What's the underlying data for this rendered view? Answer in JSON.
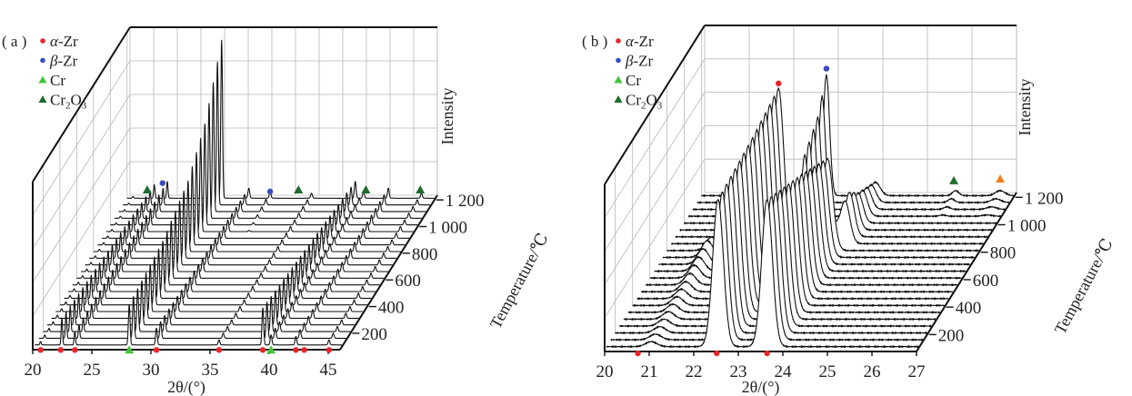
{
  "legend": [
    {
      "key": "alpha-Zr",
      "marker": "circle",
      "color": "#e8262b",
      "parts": [
        {
          "t": "α",
          "s": "italic"
        },
        {
          "t": "-Zr",
          "s": "normal"
        }
      ]
    },
    {
      "key": "beta-Zr",
      "marker": "circle",
      "color": "#3a4bbd",
      "parts": [
        {
          "t": "β",
          "s": "italic"
        },
        {
          "t": "-Zr",
          "s": "normal"
        }
      ]
    },
    {
      "key": "Cr",
      "marker": "triangle",
      "color": "#45c43c",
      "parts": [
        {
          "t": "Cr",
          "s": "normal"
        }
      ]
    },
    {
      "key": "Cr2O3",
      "marker": "triangle",
      "color": "#1f6b2e",
      "parts": [
        {
          "t": "Cr",
          "s": "normal"
        },
        {
          "t": "2",
          "s": "sub"
        },
        {
          "t": "O",
          "s": "normal"
        },
        {
          "t": "3",
          "s": "sub"
        }
      ]
    }
  ],
  "marker_colors": {
    "alpha-Zr": "#e8262b",
    "beta-Zr": "#3a4bbd",
    "Cr": "#45c43c",
    "Cr2O3": "#1f6b2e",
    "unlabeled": "#f08020"
  },
  "chart_data": [
    {
      "panel_label": "( a )",
      "type": "waterfall-line",
      "xlabel": "2θ/(°)",
      "ylabel": "Intensity",
      "zlabel": "Temperature/℃",
      "xlim": [
        20,
        46
      ],
      "x_ticks": [
        "20",
        "25",
        "30",
        "35",
        "40",
        "45"
      ],
      "z_ticks": [
        {
          "value": 200,
          "label": "200"
        },
        {
          "value": 400,
          "label": "400"
        },
        {
          "value": 600,
          "label": "600"
        },
        {
          "value": 800,
          "label": "800"
        },
        {
          "value": 1000,
          "label": "1 000"
        },
        {
          "value": 1200,
          "label": "1 200"
        }
      ],
      "temperatures": [
        100,
        150,
        200,
        250,
        300,
        350,
        400,
        450,
        500,
        550,
        600,
        650,
        700,
        750,
        800,
        850,
        900,
        950,
        1000,
        1050,
        1100,
        1150,
        1200
      ],
      "peaks": [
        {
          "theta": 20.5,
          "width": 0.08,
          "intensity": [
            [
              100,
              2
            ],
            [
              1200,
              1
            ]
          ]
        },
        {
          "theta": 22.3,
          "width": 0.08,
          "intensity": [
            [
              100,
              16
            ],
            [
              700,
              12
            ],
            [
              1200,
              8
            ]
          ]
        },
        {
          "theta": 23.4,
          "width": 0.08,
          "intensity": [
            [
              100,
              8
            ],
            [
              1200,
              10
            ]
          ]
        },
        {
          "theta": 28.0,
          "width": 0.1,
          "intensity": [
            [
              100,
              24
            ],
            [
              500,
              30
            ],
            [
              800,
              42
            ],
            [
              1000,
              60
            ],
            [
              1150,
              85
            ],
            [
              1200,
              94
            ]
          ]
        },
        {
          "theta": 30.3,
          "width": 0.1,
          "intensity": [
            [
              100,
              10
            ],
            [
              1200,
              6
            ]
          ]
        },
        {
          "theta": 32.1,
          "width": 0.1,
          "intensity": [
            [
              100,
              0
            ],
            [
              900,
              0
            ],
            [
              1200,
              4
            ]
          ]
        },
        {
          "theta": 35.6,
          "width": 0.1,
          "intensity": [
            [
              100,
              3
            ],
            [
              1200,
              3
            ]
          ]
        },
        {
          "theta": 39.3,
          "width": 0.1,
          "intensity": [
            [
              100,
              22
            ],
            [
              1200,
              10
            ]
          ]
        },
        {
          "theta": 40.0,
          "width": 0.1,
          "intensity": [
            [
              100,
              6
            ],
            [
              1200,
              4
            ]
          ]
        },
        {
          "theta": 42.1,
          "width": 0.1,
          "intensity": [
            [
              100,
              5
            ],
            [
              1200,
              6
            ]
          ]
        },
        {
          "theta": 44.9,
          "width": 0.1,
          "intensity": [
            [
              100,
              3
            ],
            [
              1200,
              3
            ]
          ]
        }
      ],
      "markers": [
        {
          "phase": "alpha-Zr",
          "theta": 20.5,
          "temperature": 100,
          "intensity": -2
        },
        {
          "phase": "alpha-Zr",
          "theta": 22.2,
          "temperature": 100,
          "intensity": -2
        },
        {
          "phase": "alpha-Zr",
          "theta": 23.4,
          "temperature": 100,
          "intensity": -2
        },
        {
          "phase": "Cr",
          "theta": 28.0,
          "temperature": 100,
          "intensity": -2
        },
        {
          "phase": "alpha-Zr",
          "theta": 30.3,
          "temperature": 100,
          "intensity": -2
        },
        {
          "phase": "alpha-Zr",
          "theta": 35.6,
          "temperature": 100,
          "intensity": -2
        },
        {
          "phase": "alpha-Zr",
          "theta": 39.3,
          "temperature": 100,
          "intensity": -2
        },
        {
          "phase": "Cr",
          "theta": 40.0,
          "temperature": 100,
          "intensity": -2
        },
        {
          "phase": "alpha-Zr",
          "theta": 42.1,
          "temperature": 100,
          "intensity": -2
        },
        {
          "phase": "alpha-Zr",
          "theta": 42.8,
          "temperature": 100,
          "intensity": -2
        },
        {
          "phase": "alpha-Zr",
          "theta": 44.9,
          "temperature": 100,
          "intensity": -2
        },
        {
          "phase": "Cr2O3",
          "theta": 21.7,
          "temperature": 1200,
          "intensity": 6
        },
        {
          "phase": "beta-Zr",
          "theta": 23.0,
          "temperature": 1200,
          "intensity": 10
        },
        {
          "phase": "beta-Zr",
          "theta": 32.1,
          "temperature": 1200,
          "intensity": 5
        },
        {
          "phase": "Cr2O3",
          "theta": 34.5,
          "temperature": 1200,
          "intensity": 6
        },
        {
          "phase": "Cr2O3",
          "theta": 40.2,
          "temperature": 1200,
          "intensity": 6
        },
        {
          "phase": "Cr2O3",
          "theta": 44.8,
          "temperature": 1200,
          "intensity": 6
        }
      ]
    },
    {
      "panel_label": "( b )",
      "type": "waterfall-line",
      "xlabel": "2θ/(°)",
      "ylabel": "Intensity",
      "zlabel": "Temperature/℃",
      "xlim": [
        20,
        27
      ],
      "x_ticks": [
        "20",
        "21",
        "22",
        "23",
        "24",
        "25",
        "26",
        "27"
      ],
      "z_ticks": [
        {
          "value": 200,
          "label": "200"
        },
        {
          "value": 400,
          "label": "400"
        },
        {
          "value": 600,
          "label": "600"
        },
        {
          "value": 800,
          "label": "800"
        },
        {
          "value": 1000,
          "label": "1 000"
        },
        {
          "value": 1200,
          "label": "1 200"
        }
      ],
      "temperatures": [
        100,
        150,
        200,
        250,
        300,
        350,
        400,
        450,
        500,
        550,
        600,
        650,
        700,
        750,
        800,
        850,
        900,
        950,
        1000,
        1050,
        1100,
        1150,
        1200
      ],
      "peaks": [
        {
          "theta": 21.0,
          "width": 0.18,
          "intensity": [
            [
              100,
              3
            ],
            [
              500,
              6
            ],
            [
              750,
              10
            ],
            [
              800,
              8
            ],
            [
              850,
              0
            ],
            [
              1200,
              0
            ]
          ]
        },
        {
          "theta": 22.5,
          "width": 0.17,
          "intensity": [
            [
              100,
              88
            ],
            [
              500,
              92
            ],
            [
              800,
              97
            ],
            [
              830,
              60
            ],
            [
              860,
              0
            ],
            [
              1200,
              0
            ]
          ]
        },
        {
          "theta": 23.6,
          "width": 0.17,
          "intensity": [
            [
              100,
              88
            ],
            [
              500,
              70
            ],
            [
              800,
              55
            ],
            [
              830,
              40
            ],
            [
              860,
              0
            ],
            [
              1200,
              0
            ]
          ]
        },
        {
          "theta": 22.8,
          "width": 0.1,
          "intensity": [
            [
              100,
              0
            ],
            [
              800,
              0
            ],
            [
              850,
              20
            ],
            [
              950,
              45
            ],
            [
              1100,
              55
            ],
            [
              1200,
              72
            ]
          ]
        },
        {
          "theta": 23.9,
          "width": 0.15,
          "intensity": [
            [
              100,
              0
            ],
            [
              800,
              0
            ],
            [
              860,
              30
            ],
            [
              1000,
              18
            ],
            [
              1200,
              8
            ]
          ]
        },
        {
          "theta": 25.7,
          "width": 0.1,
          "intensity": [
            [
              100,
              0
            ],
            [
              1000,
              0
            ],
            [
              1200,
              3
            ]
          ]
        },
        {
          "theta": 26.7,
          "width": 0.15,
          "intensity": [
            [
              100,
              0
            ],
            [
              1000,
              0
            ],
            [
              1200,
              3
            ]
          ]
        }
      ],
      "markers": [
        {
          "phase": "alpha-Zr",
          "theta": 20.7,
          "temperature": 100,
          "intensity": -3
        },
        {
          "phase": "alpha-Zr",
          "theta": 22.47,
          "temperature": 100,
          "intensity": -3
        },
        {
          "phase": "alpha-Zr",
          "theta": 23.6,
          "temperature": 100,
          "intensity": -3
        },
        {
          "phase": "alpha-Zr",
          "theta": 22.5,
          "temperature": 800,
          "intensity": 101
        },
        {
          "phase": "beta-Zr",
          "theta": 22.8,
          "temperature": 1200,
          "intensity": 77
        },
        {
          "phase": "Cr2O3",
          "theta": 25.66,
          "temperature": 1200,
          "intensity": 10
        },
        {
          "phase": "unlabeled",
          "theta": 26.7,
          "temperature": 1200,
          "intensity": 11
        }
      ]
    }
  ]
}
